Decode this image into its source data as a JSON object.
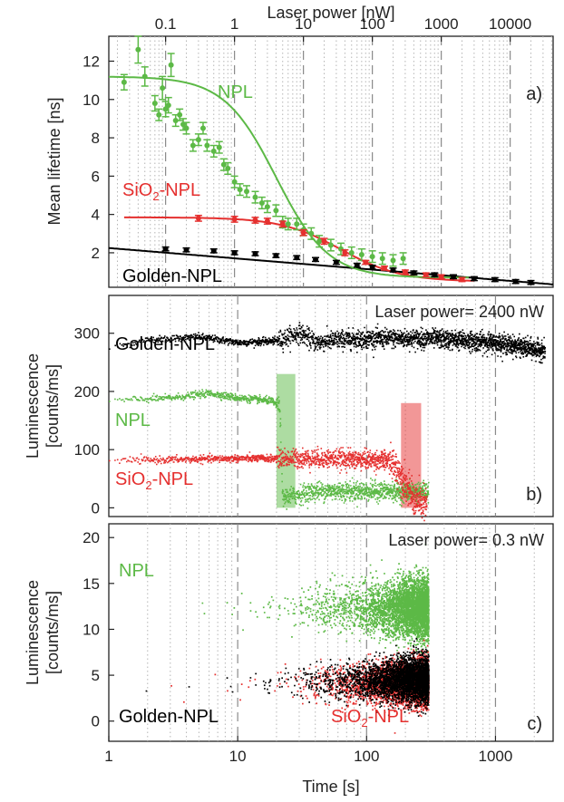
{
  "colors": {
    "npl": "#5cb946",
    "sio2": "#e5302f",
    "golden": "#000000",
    "dash": "#8a8a8a",
    "dot": "#b5b5b5"
  },
  "chart_data": [
    {
      "panel": "a",
      "type": "scatter",
      "panel_label": "a)",
      "xlabel": "Laser power [nW]",
      "ylabel": "Mean lifetime [ns]",
      "xscale": "log",
      "xlim": [
        0.015,
        42000
      ],
      "ylim": [
        0.2,
        13.3
      ],
      "xticks": [
        {
          "v": 0.1,
          "label": "0.1"
        },
        {
          "v": 1,
          "label": "1"
        },
        {
          "v": 10,
          "label": "10"
        },
        {
          "v": 100,
          "label": "100"
        },
        {
          "v": 1000,
          "label": "1000"
        },
        {
          "v": 10000,
          "label": "10000"
        }
      ],
      "yticks": [
        {
          "v": 2,
          "label": "2"
        },
        {
          "v": 4,
          "label": "4"
        },
        {
          "v": 6,
          "label": "6"
        },
        {
          "v": 8,
          "label": "8"
        },
        {
          "v": 10,
          "label": "10"
        },
        {
          "v": 12,
          "label": "12"
        }
      ],
      "grid": "dotted vertical minor lines, dashed vertical at decades",
      "labels": {
        "npl": "NPL",
        "sio2": {
          "main": "SiO",
          "sub": "2",
          "rest": "-NPL"
        },
        "golden": "Golden-NPL"
      },
      "series": [
        {
          "name": "NPL",
          "color": "#5cb946",
          "x": [
            0.025,
            0.04,
            0.05,
            0.07,
            0.08,
            0.09,
            0.1,
            0.11,
            0.12,
            0.14,
            0.16,
            0.18,
            0.2,
            0.25,
            0.3,
            0.35,
            0.4,
            0.5,
            0.6,
            0.7,
            0.8,
            1.0,
            1.2,
            1.5,
            2.0,
            2.5,
            3.0,
            4.0,
            5.0,
            6.0,
            8.0,
            10,
            13,
            17,
            25,
            35,
            50,
            70,
            100,
            140,
            200,
            280
          ],
          "y": [
            10.9,
            12.6,
            11.2,
            9.8,
            9.2,
            10.6,
            9.5,
            9.7,
            11.8,
            8.9,
            9.2,
            8.7,
            8.5,
            7.6,
            7.9,
            8.5,
            7.6,
            7.3,
            7.5,
            6.6,
            6.4,
            5.7,
            5.3,
            5.2,
            4.9,
            4.6,
            4.4,
            4.2,
            3.6,
            3.5,
            3.5,
            3.2,
            3.0,
            2.6,
            2.4,
            2.2,
            2.0,
            1.9,
            1.8,
            1.7,
            1.6,
            1.7
          ],
          "err": [
            0.4,
            0.7,
            0.5,
            0.4,
            0.3,
            0.6,
            0.4,
            0.4,
            0.6,
            0.3,
            0.3,
            0.3,
            0.3,
            0.3,
            0.3,
            0.3,
            0.3,
            0.3,
            0.3,
            0.3,
            0.3,
            0.3,
            0.3,
            0.3,
            0.3,
            0.3,
            0.3,
            0.3,
            0.3,
            0.3,
            0.3,
            0.3,
            0.3,
            0.3,
            0.3,
            0.3,
            0.3,
            0.3,
            0.3,
            0.3,
            0.3,
            0.3
          ],
          "fit": {
            "type": "sigmoid-log",
            "top": 11.2,
            "bottom": 0.7,
            "x0": 4,
            "slope": 1.15
          }
        },
        {
          "name": "SiO2-NPL",
          "color": "#e5302f",
          "x": [
            0.3,
            1.0,
            2.0,
            3.0,
            5.0,
            10,
            20,
            40,
            80,
            150,
            300,
            600,
            1000,
            2000
          ],
          "y": [
            3.8,
            3.75,
            3.7,
            3.65,
            3.5,
            3.05,
            2.6,
            2.0,
            1.5,
            1.2,
            1.0,
            0.85,
            0.75,
            0.6
          ],
          "err": [
            0.15,
            0.15,
            0.15,
            0.15,
            0.15,
            0.15,
            0.15,
            0.15,
            0.1,
            0.1,
            0.1,
            0.1,
            0.1,
            0.1
          ],
          "fit": {
            "type": "sigmoid-log",
            "top": 3.85,
            "bottom": 0.5,
            "x0": 35,
            "slope": 1.0
          }
        },
        {
          "name": "Golden-NPL",
          "color": "#000000",
          "x": [
            0.1,
            0.2,
            0.5,
            1.0,
            2.0,
            4.0,
            8.0,
            15,
            30,
            60,
            100,
            200,
            400,
            800,
            1500,
            3000,
            6000,
            12000,
            20000
          ],
          "y": [
            2.2,
            2.15,
            2.1,
            2.0,
            1.95,
            1.85,
            1.75,
            1.65,
            1.5,
            1.35,
            1.25,
            1.1,
            0.95,
            0.85,
            0.75,
            0.65,
            0.6,
            0.5,
            0.45
          ],
          "err": [
            0.1,
            0.1,
            0.1,
            0.1,
            0.1,
            0.1,
            0.1,
            0.1,
            0.1,
            0.1,
            0.1,
            0.1,
            0.1,
            0.1,
            0.1,
            0.1,
            0.1,
            0.1,
            0.1
          ],
          "fit": {
            "type": "log-linear",
            "y_at_0_015": 2.25,
            "y_at_42000": 0.35
          }
        }
      ]
    },
    {
      "panel": "b",
      "type": "scatter",
      "panel_label": "b)",
      "annotation": "Laser power= 2400 nW",
      "ylabel": [
        "Luminescence",
        "[counts/ms]"
      ],
      "xscale": "log",
      "xlim": [
        1,
        2800
      ],
      "ylim": [
        -15,
        365
      ],
      "yticks": [
        {
          "v": 0,
          "label": "0"
        },
        {
          "v": 100,
          "label": "100"
        },
        {
          "v": 200,
          "label": "200"
        },
        {
          "v": 300,
          "label": "300"
        }
      ],
      "labels": {
        "golden": "Golden-NPL",
        "npl": "NPL",
        "sio2": {
          "main": "SiO",
          "sub": "2",
          "rest": "-NPL"
        }
      },
      "series": [
        {
          "name": "Golden-NPL",
          "color": "#000000",
          "segments": [
            [
              1,
              275
            ],
            [
              2,
              290
            ],
            [
              5,
              295
            ],
            [
              10,
              285
            ],
            [
              20,
              288
            ],
            [
              30,
              302
            ],
            [
              40,
              285
            ],
            [
              60,
              290
            ],
            [
              100,
              292
            ],
            [
              300,
              292
            ],
            [
              1000,
              285
            ],
            [
              2400,
              270
            ]
          ]
        },
        {
          "name": "NPL",
          "color": "#5cb946",
          "segments": [
            [
              1,
              185
            ],
            [
              3,
              190
            ],
            [
              6,
              198
            ],
            [
              10,
              190
            ],
            [
              18,
              185
            ],
            [
              21,
              175
            ],
            [
              22,
              18
            ],
            [
              40,
              30
            ],
            [
              100,
              30
            ],
            [
              300,
              28
            ]
          ]
        },
        {
          "name": "SiO2-NPL",
          "color": "#e5302f",
          "segments": [
            [
              1,
              82
            ],
            [
              10,
              86
            ],
            [
              50,
              86
            ],
            [
              150,
              82
            ],
            [
              180,
              60
            ],
            [
              230,
              15
            ],
            [
              290,
              5
            ]
          ]
        }
      ],
      "bleach_markers": [
        {
          "color": "#5cb946",
          "x_from": 20,
          "x_to": 28,
          "y_from": 0,
          "y_to": 230
        },
        {
          "color": "#e5302f",
          "x_from": 185,
          "x_to": 265,
          "y_from": 0,
          "y_to": 180
        }
      ]
    },
    {
      "panel": "c",
      "type": "scatter",
      "panel_label": "c)",
      "annotation": "Laser power= 0.3 nW",
      "ylabel": [
        "Luminescence",
        "[counts/ms]"
      ],
      "xlabel": "Time [s]",
      "xscale": "log",
      "xlim": [
        1,
        2800
      ],
      "ylim": [
        -2.2,
        21.5
      ],
      "xticks": [
        {
          "v": 1,
          "label": "1"
        },
        {
          "v": 10,
          "label": "10"
        },
        {
          "v": 100,
          "label": "100"
        },
        {
          "v": 1000,
          "label": "1000"
        }
      ],
      "yticks": [
        {
          "v": 0,
          "label": "0"
        },
        {
          "v": 5,
          "label": "5"
        },
        {
          "v": 10,
          "label": "10"
        },
        {
          "v": 15,
          "label": "15"
        },
        {
          "v": 20,
          "label": "20"
        }
      ],
      "labels": {
        "npl": "NPL",
        "golden": "Golden-NPL",
        "sio2": {
          "main": "SiO",
          "sub": "2",
          "rest": "-NPL"
        }
      },
      "series": [
        {
          "name": "NPL",
          "color": "#5cb946",
          "x_range": [
            1,
            300
          ],
          "mean_start": 12.3,
          "mean_end": 12.3,
          "spread_start": 1.0,
          "spread_end": 3.0
        },
        {
          "name": "SiO2-NPL",
          "color": "#e5302f",
          "x_range": [
            1,
            300
          ],
          "mean_start": 3.8,
          "mean_end": 4.3,
          "spread_start": 1.0,
          "spread_end": 2.2
        },
        {
          "name": "Golden-NPL",
          "color": "#000000",
          "x_range": [
            1,
            300
          ],
          "mean_start": 4.0,
          "mean_end": 4.6,
          "spread_start": 1.0,
          "spread_end": 2.2
        }
      ]
    }
  ]
}
